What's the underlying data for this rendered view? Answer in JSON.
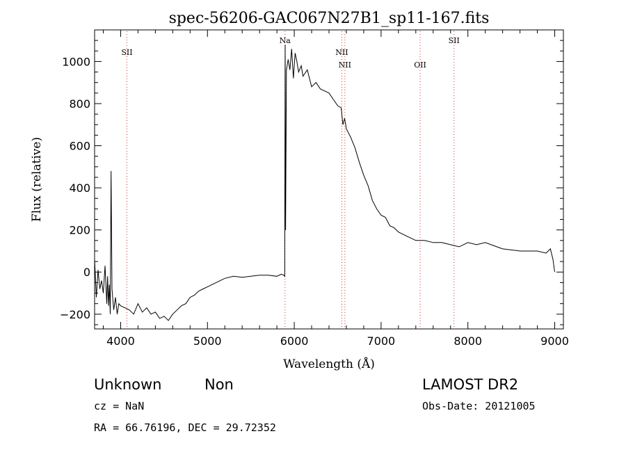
{
  "chart_data": {
    "type": "line",
    "title": "spec-56206-GAC067N27B1_sp11-167.fits",
    "xlabel": "Wavelength (Å)",
    "ylabel": "Flux (relative)",
    "xlim": [
      3700,
      9100
    ],
    "ylim": [
      -270,
      1150
    ],
    "x_ticks": [
      4000,
      5000,
      6000,
      7000,
      8000,
      9000
    ],
    "y_ticks": [
      -200,
      0,
      200,
      400,
      600,
      800,
      1000
    ],
    "grid": false,
    "line_color": "#000000",
    "marker_line_color": "#cc3333",
    "spectral_lines": [
      {
        "label": "SII",
        "wavelength": 4072,
        "label_row": 0
      },
      {
        "label": "Na",
        "wavelength": 5893,
        "label_row": -1
      },
      {
        "label": "NII",
        "wavelength": 6548,
        "label_row": 0
      },
      {
        "label": "NII",
        "wavelength": 6583,
        "label_row": 1
      },
      {
        "label": "OII",
        "wavelength": 7450,
        "label_row": 1
      },
      {
        "label": "SII",
        "wavelength": 7840,
        "label_row": -1
      }
    ],
    "series": [
      {
        "x": [
          3700,
          3720,
          3740,
          3760,
          3780,
          3800,
          3820,
          3840,
          3850,
          3860,
          3870,
          3880,
          3890,
          3900,
          3920,
          3940,
          3960,
          3980,
          4000,
          4050,
          4100,
          4150,
          4200,
          4250,
          4300,
          4350,
          4400,
          4450,
          4500,
          4550,
          4600,
          4650,
          4700,
          4750,
          4800,
          4850,
          4900,
          4950,
          5000,
          5100,
          5200,
          5300,
          5400,
          5500,
          5600,
          5700,
          5800,
          5850,
          5880,
          5890,
          5895,
          5900,
          5910,
          5930,
          5950,
          5970,
          5990,
          6010,
          6030,
          6050,
          6080,
          6100,
          6150,
          6200,
          6250,
          6300,
          6350,
          6400,
          6450,
          6500,
          6540,
          6560,
          6580,
          6600,
          6650,
          6700,
          6750,
          6800,
          6850,
          6900,
          6950,
          7000,
          7050,
          7100,
          7150,
          7200,
          7300,
          7400,
          7500,
          7600,
          7700,
          7800,
          7900,
          8000,
          8100,
          8200,
          8300,
          8400,
          8500,
          8600,
          8700,
          8800,
          8900,
          8950,
          8980,
          9000
        ],
        "y": [
          60,
          -120,
          10,
          -80,
          -40,
          -100,
          30,
          -150,
          -20,
          -160,
          -60,
          -200,
          480,
          -80,
          -180,
          -120,
          -200,
          -150,
          -160,
          -170,
          -180,
          -200,
          -150,
          -190,
          -170,
          -200,
          -190,
          -220,
          -210,
          -230,
          -200,
          -180,
          -160,
          -150,
          -120,
          -110,
          -90,
          -80,
          -70,
          -50,
          -30,
          -20,
          -25,
          -20,
          -15,
          -15,
          -20,
          -10,
          -15,
          -20,
          1080,
          200,
          960,
          1010,
          960,
          1060,
          920,
          1040,
          1000,
          950,
          980,
          930,
          960,
          880,
          900,
          870,
          860,
          850,
          820,
          790,
          780,
          700,
          730,
          680,
          640,
          590,
          520,
          460,
          410,
          340,
          300,
          270,
          260,
          220,
          210,
          190,
          170,
          150,
          150,
          140,
          140,
          130,
          120,
          140,
          130,
          140,
          125,
          110,
          105,
          100,
          100,
          100,
          90,
          110,
          60,
          0
        ]
      }
    ]
  },
  "info": {
    "class_label": "Unknown",
    "subclass_label": "Non",
    "survey_label": "LAMOST DR2",
    "cz_text": "cz = NaN",
    "obs_date_text": "Obs-Date: 20121005",
    "coords_text": "RA =  66.76196, DEC =  29.72352"
  }
}
